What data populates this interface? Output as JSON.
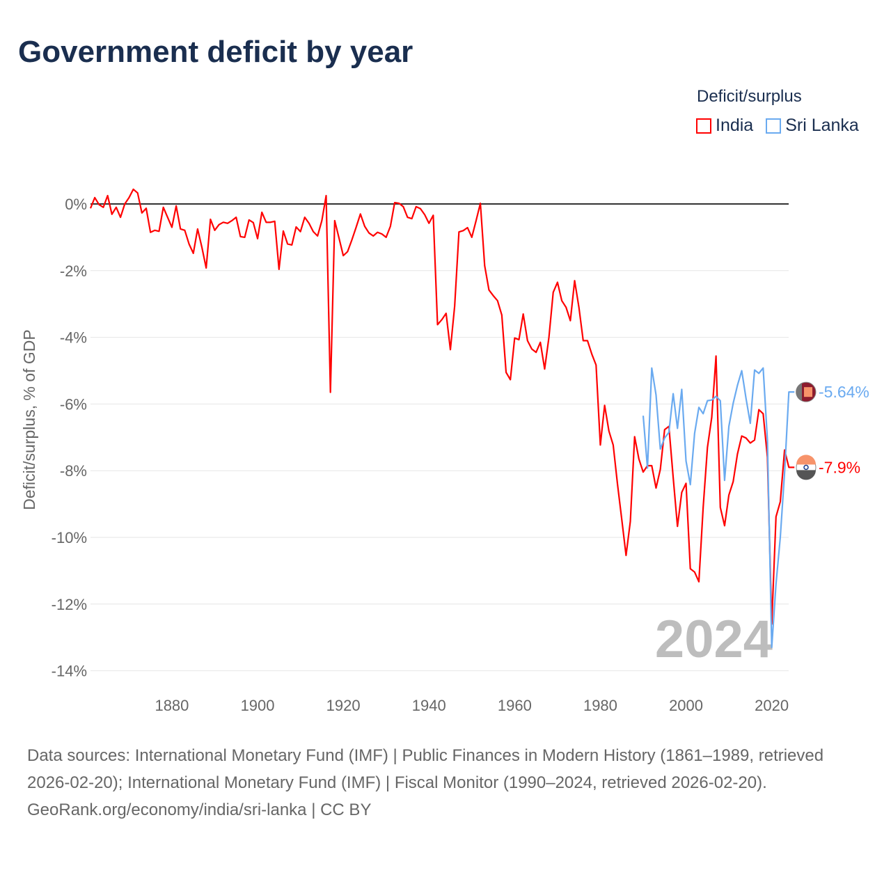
{
  "title": "Government deficit by year",
  "legend": {
    "title": "Deficit/surplus",
    "items": [
      {
        "name": "India",
        "color": "#ff0000"
      },
      {
        "name": "Sri Lanka",
        "color": "#6aaaf0"
      }
    ]
  },
  "chart_data": {
    "type": "line",
    "title": "Government deficit by year",
    "ylabel": "Deficit/surplus, % of GDP",
    "xlabel": "",
    "xlim": [
      1861,
      2024
    ],
    "ylim": [
      -14,
      0.5
    ],
    "yticks": [
      0,
      -2,
      -4,
      -6,
      -8,
      -10,
      -12,
      -14
    ],
    "ytick_labels": [
      "0%",
      "-2%",
      "-4%",
      "-6%",
      "-8%",
      "-10%",
      "-12%",
      "-14%"
    ],
    "xticks": [
      1880,
      1900,
      1920,
      1940,
      1960,
      1980,
      2000,
      2020
    ],
    "xtick_labels": [
      "1880",
      "1900",
      "1920",
      "1940",
      "1960",
      "1980",
      "2000",
      "2020"
    ],
    "grid": true,
    "legend_position": "top-right",
    "year_watermark": "2024",
    "series": [
      {
        "name": "India",
        "color": "#ff0000",
        "start_year": 1861,
        "end_label": "-7.9%",
        "values": [
          -0.13,
          0.19,
          -0.02,
          -0.1,
          0.25,
          -0.31,
          -0.1,
          -0.4,
          0,
          0.19,
          0.44,
          0.33,
          -0.27,
          -0.13,
          -0.85,
          -0.79,
          -0.82,
          -0.1,
          -0.4,
          -0.7,
          -0.06,
          -0.75,
          -0.79,
          -1.2,
          -1.48,
          -0.75,
          -1.3,
          -1.92,
          -0.46,
          -0.79,
          -0.62,
          -0.55,
          -0.58,
          -0.5,
          -0.4,
          -0.98,
          -1.0,
          -0.48,
          -0.56,
          -1.04,
          -0.25,
          -0.55,
          -0.55,
          -0.52,
          -1.96,
          -0.81,
          -1.2,
          -1.23,
          -0.69,
          -0.83,
          -0.4,
          -0.58,
          -0.83,
          -0.96,
          -0.5,
          0.25,
          -5.65,
          -0.5,
          -1.02,
          -1.55,
          -1.43,
          -1.08,
          -0.7,
          -0.3,
          -0.67,
          -0.87,
          -0.96,
          -0.85,
          -0.9,
          -1.0,
          -0.67,
          0.04,
          0.02,
          -0.08,
          -0.4,
          -0.44,
          -0.08,
          -0.14,
          -0.32,
          -0.58,
          -0.34,
          -3.62,
          -3.47,
          -3.28,
          -4.37,
          -3.06,
          -0.84,
          -0.8,
          -0.71,
          -1.0,
          -0.5,
          0.02,
          -1.85,
          -2.58,
          -2.75,
          -2.9,
          -3.33,
          -5.05,
          -5.27,
          -4.02,
          -4.07,
          -3.3,
          -4.1,
          -4.35,
          -4.45,
          -4.15,
          -4.95,
          -4.0,
          -2.65,
          -2.35,
          -2.9,
          -3.1,
          -3.5,
          -2.3,
          -3.1,
          -4.1,
          -4.1,
          -4.5,
          -4.83,
          -7.23,
          -6.04,
          -6.81,
          -7.23,
          -8.4,
          -9.46,
          -10.54,
          -9.52,
          -6.98,
          -7.65,
          -8.04,
          -7.85,
          -7.85,
          -8.52,
          -7.96,
          -6.77,
          -6.67,
          -8.2,
          -9.67,
          -8.65,
          -8.38,
          -10.94,
          -11.04,
          -11.33,
          -9.1,
          -7.3,
          -6.4,
          -4.56,
          -9.1,
          -9.65,
          -8.73,
          -8.33,
          -7.5,
          -6.96,
          -7.02,
          -7.17,
          -7.08,
          -6.17,
          -6.29,
          -7.6,
          -12.6,
          -9.38,
          -8.93,
          -7.38,
          -7.9
        ]
      },
      {
        "name": "Sri Lanka",
        "color": "#6aaaf0",
        "start_year": 1990,
        "end_label": "-5.64%",
        "values": [
          -6.35,
          -7.92,
          -4.92,
          -5.73,
          -7.35,
          -7.02,
          -6.85,
          -5.69,
          -6.73,
          -5.56,
          -7.71,
          -8.42,
          -6.88,
          -6.1,
          -6.29,
          -5.9,
          -5.88,
          -5.77,
          -5.9,
          -8.29,
          -6.67,
          -5.98,
          -5.44,
          -5.0,
          -5.83,
          -6.58,
          -4.98,
          -5.08,
          -4.92,
          -7.08,
          -13.3,
          -11.4,
          -10.0,
          -8.06,
          -5.64
        ]
      }
    ]
  },
  "footer": {
    "sources": "Data sources: International Monetary Fund (IMF) | Public Finances in Modern History (1861–1989, retrieved 2026-02-20); International Monetary Fund (IMF) | Fiscal Monitor (1990–2024, retrieved 2026-02-20).",
    "credit": "GeoRank.org/economy/india/sri-lanka | CC BY"
  }
}
